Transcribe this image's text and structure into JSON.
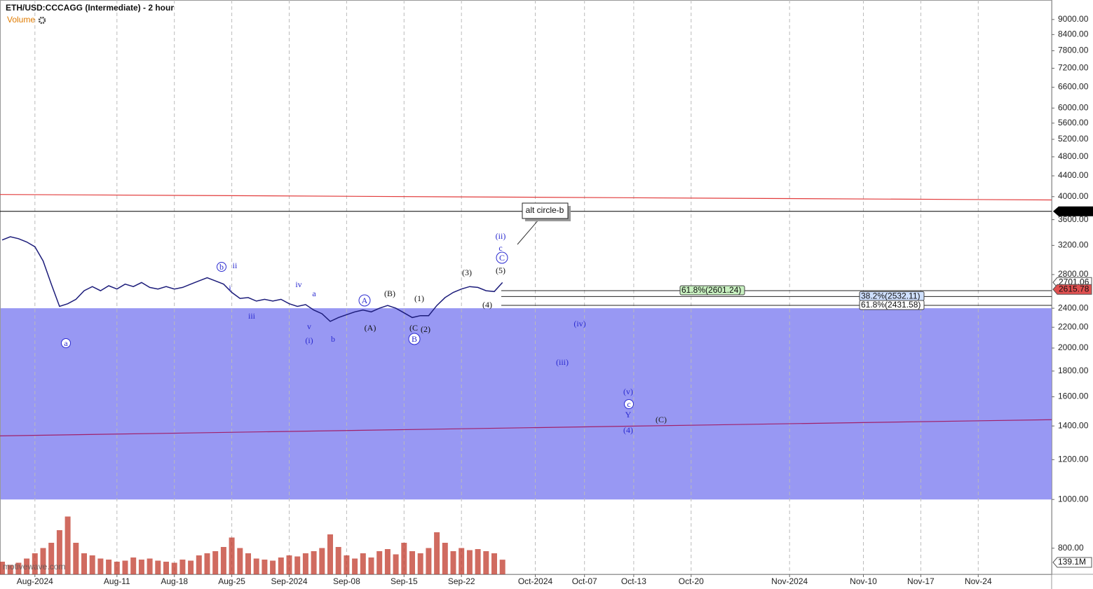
{
  "chart_data": {
    "type": "line",
    "title": "ETH/USD:CCCAGG (Intermediate) - 2 hour",
    "indicator": "Volume",
    "log_scale": true,
    "ylim": [
      710,
      9840
    ],
    "yticks": [
      {
        "value": 800,
        "label": "800.00"
      },
      {
        "value": 1000,
        "label": "1000.00"
      },
      {
        "value": 1200,
        "label": "1200.00"
      },
      {
        "value": 1400,
        "label": "1400.00"
      },
      {
        "value": 1600,
        "label": "1600.00"
      },
      {
        "value": 1800,
        "label": "1800.00"
      },
      {
        "value": 2000,
        "label": "2000.00"
      },
      {
        "value": 2200,
        "label": "2200.00"
      },
      {
        "value": 2400,
        "label": "2400.00"
      },
      {
        "value": 2800,
        "label": "2800.00"
      },
      {
        "value": 3200,
        "label": "3200.00"
      },
      {
        "value": 3600,
        "label": "3600.00"
      },
      {
        "value": 4000,
        "label": "4000.00"
      },
      {
        "value": 4400,
        "label": "4400.00"
      },
      {
        "value": 4800,
        "label": "4800.00"
      },
      {
        "value": 5200,
        "label": "5200.00"
      },
      {
        "value": 5600,
        "label": "5600.00"
      },
      {
        "value": 6000,
        "label": "6000.00"
      },
      {
        "value": 6600,
        "label": "6600.00"
      },
      {
        "value": 7200,
        "label": "7200.00"
      },
      {
        "value": 7800,
        "label": "7800.00"
      },
      {
        "value": 8400,
        "label": "8400.00"
      },
      {
        "value": 9000,
        "label": "9000.00"
      }
    ],
    "y2lim": [
      0,
      600
    ],
    "grid": true,
    "categories": [
      null,
      null,
      null,
      null,
      "Aug-2024",
      null,
      null,
      null,
      null,
      null,
      null,
      null,
      null,
      null,
      "Aug-11",
      null,
      null,
      null,
      null,
      null,
      null,
      "Aug-18",
      null,
      null,
      null,
      null,
      null,
      null,
      "Aug-25",
      null,
      null,
      null,
      null,
      null,
      null,
      "Sep-2024",
      null,
      null,
      null,
      null,
      null,
      null,
      "Sep-08",
      null,
      null,
      null,
      null,
      null,
      null,
      "Sep-15",
      null,
      null,
      null,
      null,
      null,
      null,
      "Sep-22",
      null,
      null,
      null,
      null,
      null,
      null,
      null,
      null,
      "Oct-2024",
      null,
      null,
      null,
      null,
      null,
      "Oct-07",
      null,
      null,
      null,
      null,
      null,
      "Oct-13",
      null,
      null,
      null,
      null,
      null,
      null,
      "Oct-20",
      null,
      null,
      null,
      null,
      null,
      null,
      null,
      null,
      null,
      null,
      null,
      "Nov-2024",
      null,
      null,
      null,
      null,
      null,
      null,
      null,
      null,
      "Nov-10",
      null,
      null,
      null,
      null,
      null,
      null,
      "Nov-17",
      null,
      null,
      null,
      null,
      null,
      null,
      "Nov-24",
      null,
      null,
      null,
      null,
      null,
      null,
      null,
      null
    ],
    "series": [
      {
        "name": "ETH/USD",
        "color": "#1c1c7a",
        "values": [
          3280,
          3330,
          3300,
          3250,
          3180,
          2980,
          2680,
          2420,
          2450,
          2500,
          2600,
          2650,
          2600,
          2660,
          2620,
          2680,
          2650,
          2700,
          2640,
          2620,
          2650,
          2620,
          2640,
          2680,
          2720,
          2760,
          2720,
          2680,
          2580,
          2510,
          2520,
          2480,
          2500,
          2480,
          2500,
          2450,
          2420,
          2440,
          2380,
          2340,
          2260,
          2300,
          2330,
          2360,
          2380,
          2360,
          2400,
          2430,
          2400,
          2350,
          2300,
          2320,
          2320,
          2430,
          2520,
          2580,
          2620,
          2650,
          2640,
          2600,
          2590,
          2700,
          null,
          null,
          null,
          null,
          null,
          null,
          null,
          null,
          null,
          null,
          null,
          null,
          null,
          null,
          null,
          null,
          null,
          null,
          null,
          null,
          null,
          null,
          null,
          null,
          null,
          null,
          null,
          null,
          null,
          null,
          null,
          null,
          null,
          null,
          null,
          null,
          null,
          null,
          null,
          null,
          null,
          null,
          null,
          null,
          null,
          null,
          null,
          null,
          null,
          null,
          null,
          null,
          null,
          null,
          null,
          null,
          null,
          null,
          null,
          null,
          null,
          null,
          null,
          null,
          null,
          null
        ]
      },
      {
        "name": "Volume",
        "color": "#c0392b",
        "axis": "y2",
        "values": [
          120,
          90,
          110,
          150,
          200,
          250,
          300,
          420,
          550,
          300,
          200,
          180,
          150,
          140,
          120,
          130,
          160,
          140,
          150,
          130,
          120,
          110,
          140,
          130,
          180,
          200,
          220,
          260,
          350,
          250,
          200,
          150,
          140,
          130,
          160,
          180,
          170,
          200,
          220,
          250,
          380,
          260,
          180,
          150,
          200,
          160,
          220,
          240,
          190,
          300,
          220,
          200,
          250,
          400,
          300,
          220,
          250,
          230,
          240,
          220,
          200,
          139.1,
          null,
          null,
          null,
          null,
          null,
          null,
          null,
          null,
          null,
          null,
          null,
          null,
          null,
          null,
          null,
          null,
          null,
          null,
          null,
          null,
          null,
          null,
          null,
          null,
          null,
          null,
          null,
          null,
          null,
          null,
          null,
          null,
          null,
          null,
          null,
          null,
          null,
          null,
          null,
          null,
          null,
          null,
          null,
          null,
          null,
          null,
          null,
          null,
          null,
          null,
          null,
          null,
          null,
          null,
          null,
          null,
          null,
          null,
          null,
          null,
          null,
          null,
          null,
          null,
          null,
          null
        ]
      }
    ],
    "price_tags": [
      {
        "value": 2701.06,
        "color": "#ffffff"
      },
      {
        "value": 2615.78,
        "color": "#e05050"
      }
    ],
    "volume_tag": {
      "value": 139.1,
      "label": "139.1M"
    },
    "zone": {
      "from": 1000,
      "to": 2400,
      "color": "#9898f3"
    },
    "hline": {
      "value": 3740,
      "color": "#000000"
    },
    "trendlines": [
      {
        "color": "#e23c3c",
        "values": [
          4040,
          3940
        ]
      },
      {
        "color": "#a0206a",
        "values": [
          1338,
          1441
        ]
      }
    ],
    "fib_levels": [
      {
        "value": 2601.24,
        "label": "61.8%(2601.24)"
      },
      {
        "value": 2532.11,
        "label": "38.2%(2532.11)"
      },
      {
        "value": 2431.58,
        "label": "61.8%(2431.58)"
      }
    ],
    "annotations": [
      "a",
      "b",
      "ii",
      "i",
      "iii",
      "iv",
      "a",
      "v",
      "(i)",
      "b",
      "A",
      "(A)",
      "(B)",
      "(1)",
      "(C",
      "(2)",
      "B",
      "(3)",
      "(4)",
      "(5)",
      "C",
      "c",
      "(ii)",
      "(iv)",
      "(iii)",
      "(v)",
      "c",
      "Y",
      "(4)",
      "(C)"
    ],
    "callout": "alt circle-b",
    "watermark": "motivewave.com"
  }
}
